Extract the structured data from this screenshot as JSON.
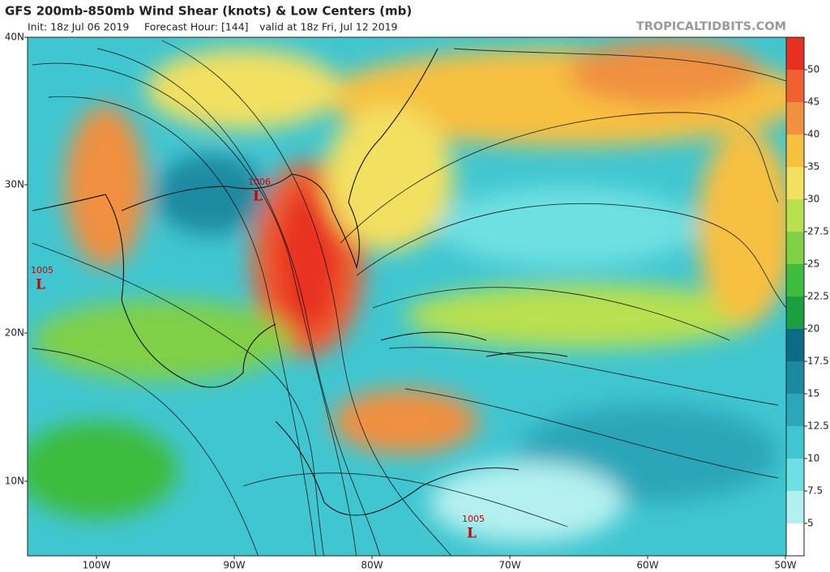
{
  "header": {
    "title": "GFS 200mb-850mb Wind Shear (knots) & Low Centers (mb)",
    "init": "Init: 18z Jul 06 2019",
    "forecast_hour": "Forecast Hour: [144]",
    "valid": "valid at 18z Fri, Jul 12 2019",
    "site": "TROPICALTIDBITS.COM"
  },
  "map": {
    "latitude_labels": [
      "40N",
      "30N",
      "20N",
      "10N"
    ],
    "longitude_labels": [
      "100W",
      "90W",
      "80W",
      "70W",
      "60W",
      "50W"
    ],
    "low_centers": [
      {
        "pressure": 1006,
        "symbol": "L"
      },
      {
        "pressure": 1005,
        "symbol": "L"
      },
      {
        "pressure": 1005,
        "symbol": "L"
      }
    ]
  },
  "colorbar": {
    "ticks": [
      5,
      7.5,
      10,
      12.5,
      15,
      17.5,
      20,
      22.5,
      25,
      27.5,
      30,
      35,
      40,
      45,
      50
    ],
    "colors": [
      "#ffffff",
      "#b4f0f0",
      "#6ee0e2",
      "#40c6d0",
      "#2ca6b8",
      "#1c8aa0",
      "#0c6c88",
      "#1aa040",
      "#3ebc3e",
      "#80d046",
      "#b8e050",
      "#f2e060",
      "#f8c040",
      "#f09040",
      "#f06030",
      "#e83020"
    ]
  }
}
